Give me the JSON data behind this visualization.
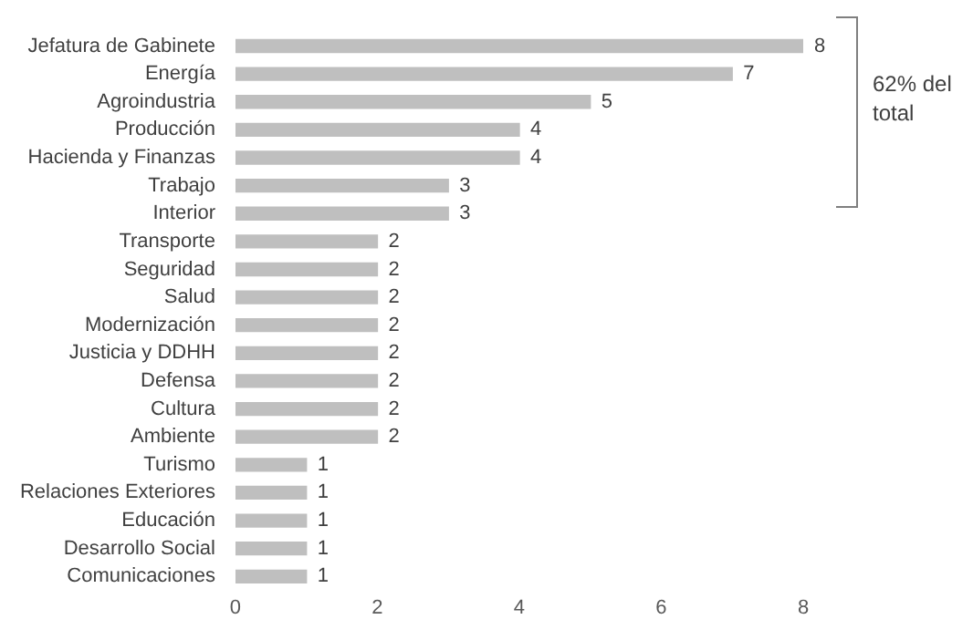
{
  "chart_data": {
    "type": "bar",
    "orientation": "horizontal",
    "categories": [
      "Jefatura de Gabinete",
      "Energía",
      "Agroindustria",
      "Producción",
      "Hacienda y Finanzas",
      "Trabajo",
      "Interior",
      "Transporte",
      "Seguridad",
      "Salud",
      "Modernización",
      "Justicia y DDHH",
      "Defensa",
      "Cultura",
      "Ambiente",
      "Turismo",
      "Relaciones Exteriores",
      "Educación",
      "Desarrollo Social",
      "Comunicaciones"
    ],
    "values": [
      8,
      7,
      5,
      4,
      4,
      3,
      3,
      2,
      2,
      2,
      2,
      2,
      2,
      2,
      2,
      1,
      1,
      1,
      1,
      1
    ],
    "color": "#bfbfbf",
    "xlim": [
      0,
      8
    ],
    "xticks": [
      0,
      2,
      4,
      6,
      8
    ],
    "data_labels": true,
    "annotations": [
      "62% del total"
    ]
  }
}
